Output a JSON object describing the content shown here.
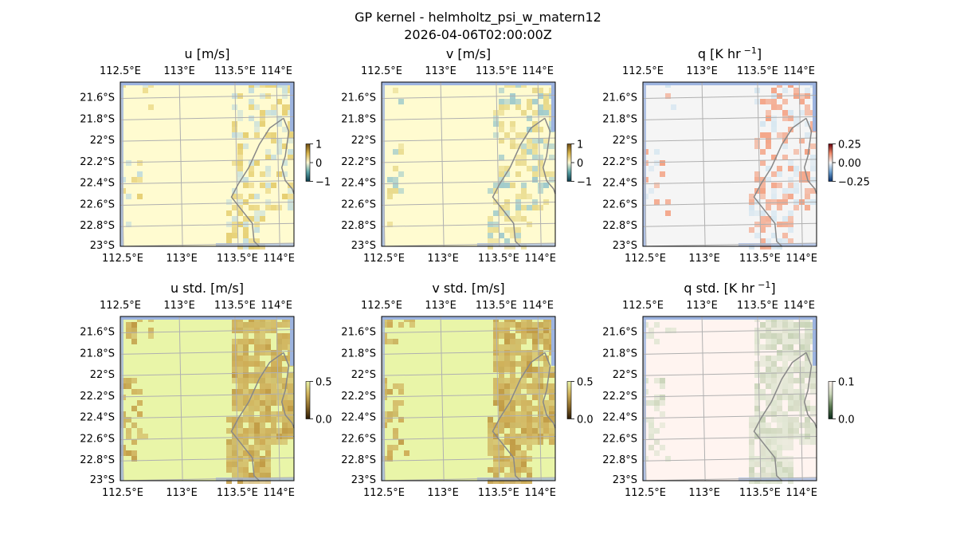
{
  "figure": {
    "title": "GP kernel - helmholtz_psi_w_matern12",
    "subtitle": "2026-04-06T02:00:00Z"
  },
  "chart_data": [
    {
      "type": "heatmap",
      "title": "u [m/s]",
      "x_ticks": [
        "112.5°E",
        "113°E",
        "113.5°E",
        "114°E"
      ],
      "y_ticks": [
        "21.6°S",
        "21.8°S",
        "22°S",
        "22.2°S",
        "22.4°S",
        "22.6°S",
        "22.8°S",
        "23°S"
      ],
      "colorbar": {
        "ticks": [
          "1",
          "0",
          "−1"
        ],
        "range": [
          -1,
          1
        ],
        "colors": [
          "#0b3b4a",
          "#5aa3a6",
          "#fbf7d3",
          "#d7b44a",
          "#6b4a12"
        ]
      },
      "field_colors": {
        "base": "#fffbd0",
        "accent": "#e6cf72",
        "alt": "#c6dedc"
      }
    },
    {
      "type": "heatmap",
      "title": "v [m/s]",
      "x_ticks": [
        "112.5°E",
        "113°E",
        "113.5°E",
        "114°E"
      ],
      "y_ticks": [
        "21.6°S",
        "21.8°S",
        "22°S",
        "22.2°S",
        "22.4°S",
        "22.6°S",
        "22.8°S",
        "23°S"
      ],
      "colorbar": {
        "ticks": [
          "1",
          "0",
          "−1"
        ],
        "range": [
          -1,
          1
        ],
        "colors": [
          "#0b3b4a",
          "#5aa3a6",
          "#fbf7d3",
          "#d7b44a",
          "#6b4a12"
        ]
      },
      "field_colors": {
        "base": "#fffbd0",
        "accent": "#e8d98a",
        "alt": "#9fcacb"
      }
    },
    {
      "type": "heatmap",
      "title": "q [K hr",
      "title_sup": "−1",
      "title_end": "]",
      "x_ticks": [
        "112.5°E",
        "113°E",
        "113.5°E",
        "114°E"
      ],
      "y_ticks": [
        "21.6°S",
        "21.8°S",
        "22°S",
        "22.2°S",
        "22.4°S",
        "22.6°S",
        "22.8°S",
        "23°S"
      ],
      "colorbar": {
        "ticks": [
          "0.25",
          "0.00",
          "−0.25"
        ],
        "range": [
          -0.25,
          0.25
        ],
        "colors": [
          "#08306b",
          "#6a9ecf",
          "#f5f5f5",
          "#f08a6a",
          "#67000d"
        ]
      },
      "field_colors": {
        "base": "#f5f5f5",
        "accent": "#f3a385",
        "alt": "#d6e6f0"
      }
    },
    {
      "type": "heatmap",
      "title": "u std. [m/s]",
      "x_ticks": [
        "112.5°E",
        "113°E",
        "113.5°E",
        "114°E"
      ],
      "y_ticks": [
        "21.6°S",
        "21.8°S",
        "22°S",
        "22.2°S",
        "22.4°S",
        "22.6°S",
        "22.8°S",
        "23°S"
      ],
      "colorbar": {
        "ticks": [
          "0.5",
          "0.0"
        ],
        "range": [
          0,
          0.5
        ],
        "colors": [
          "#2b1a05",
          "#8a6a2a",
          "#d0b25a",
          "#e9f3a8"
        ]
      },
      "field_colors": {
        "base": "#e9f5a8",
        "accent": "#cdab55",
        "alt": "#c19b45"
      }
    },
    {
      "type": "heatmap",
      "title": "v std. [m/s]",
      "x_ticks": [
        "112.5°E",
        "113°E",
        "113.5°E",
        "114°E"
      ],
      "y_ticks": [
        "21.6°S",
        "21.8°S",
        "22°S",
        "22.2°S",
        "22.4°S",
        "22.6°S",
        "22.8°S",
        "23°S"
      ],
      "colorbar": {
        "ticks": [
          "0.5",
          "0.0"
        ],
        "range": [
          0,
          0.5
        ],
        "colors": [
          "#2b1a05",
          "#8a6a2a",
          "#d0b25a",
          "#e9f3a8"
        ]
      },
      "field_colors": {
        "base": "#e9f5a8",
        "accent": "#cdab55",
        "alt": "#c19b45"
      }
    },
    {
      "type": "heatmap",
      "title": "q std. [K hr",
      "title_sup": "−1",
      "title_end": "]",
      "x_ticks": [
        "112.5°E",
        "113°E",
        "113.5°E",
        "114°E"
      ],
      "y_ticks": [
        "21.6°S",
        "21.8°S",
        "22°S",
        "22.2°S",
        "22.4°S",
        "22.6°S",
        "22.8°S",
        "23°S"
      ],
      "colorbar": {
        "ticks": [
          "0.1",
          "0.0"
        ],
        "range": [
          0,
          0.1
        ],
        "colors": [
          "#0b2a1a",
          "#5c7a52",
          "#c9d6b8",
          "#fff3ef"
        ]
      },
      "field_colors": {
        "base": "#fff4f0",
        "accent": "#dde4cf",
        "alt": "#c9d4b8"
      }
    }
  ],
  "colors": {
    "ocean_edge": "#9db4e0",
    "coast": "#888888",
    "grid": "#b0b0b0"
  }
}
